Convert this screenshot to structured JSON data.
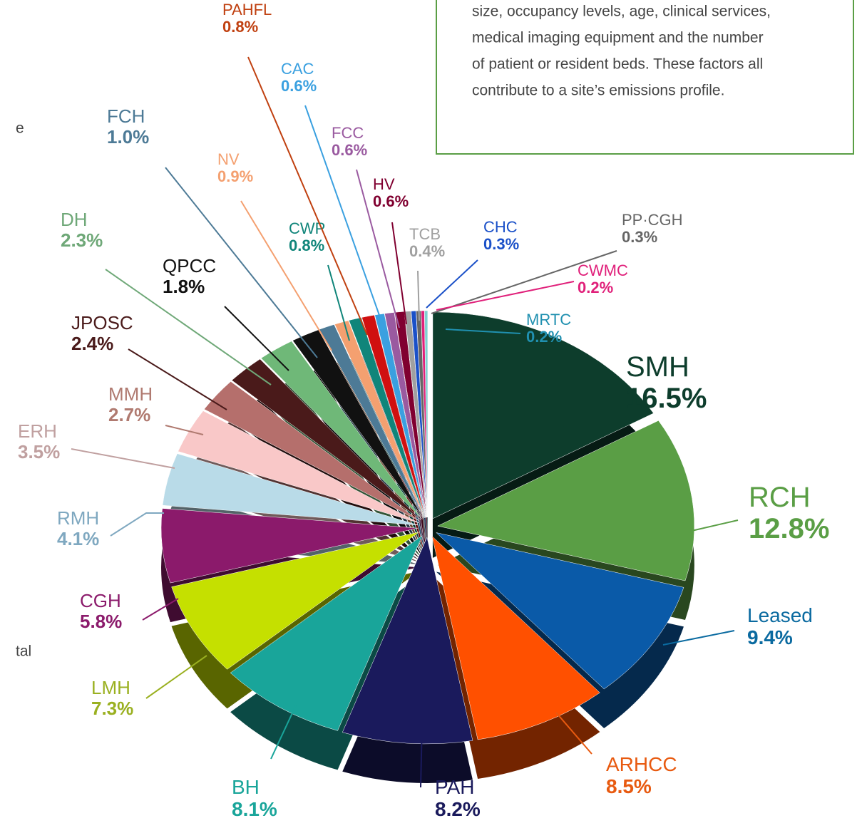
{
  "chart_data": {
    "type": "pie",
    "categories": [
      "SMH",
      "RCH",
      "Leased",
      "ARHCC",
      "PAH",
      "BH",
      "LMH",
      "CGH",
      "RMH",
      "ERH",
      "MMH",
      "JPOSC",
      "DH",
      "QPCC",
      "FCH",
      "NV",
      "CWP",
      "PAHFL",
      "CAC",
      "FCC",
      "HV",
      "TCB",
      "CHC",
      "PP·CGH",
      "CWMC",
      "MRTC"
    ],
    "values": [
      16.5,
      12.8,
      9.4,
      8.5,
      8.2,
      8.1,
      7.3,
      5.8,
      4.1,
      3.5,
      2.7,
      2.4,
      2.3,
      1.8,
      1.0,
      0.9,
      0.8,
      0.8,
      0.6,
      0.6,
      0.6,
      0.4,
      0.3,
      0.3,
      0.2,
      0.2
    ],
    "value_labels": [
      "16.5%",
      "12.8%",
      "9.4%",
      "8.5%",
      "8.2%",
      "8.1%",
      "7.3%",
      "5.8%",
      "4.1%",
      "3.5%",
      "2.7%",
      "2.4%",
      "2.3%",
      "1.8%",
      "1.0%",
      "0.9%",
      "0.8%",
      "0.8%",
      "0.6%",
      "0.6%",
      "0.6%",
      "0.4%",
      "0.3%",
      "0.3%",
      "0.2%",
      "0.2%"
    ],
    "colors": [
      "#0d3d2c",
      "#5a9e45",
      "#0a5aa8",
      "#ff5000",
      "#1a1a5c",
      "#19a59a",
      "#c5e000",
      "#8b1a6b",
      "#b9dbe8",
      "#f9c8c8",
      "#b56f6c",
      "#4a1a1a",
      "#6fb878",
      "#111111",
      "#4d7a96",
      "#f4a070",
      "#10857a",
      "#d01010",
      "#3aa0e0",
      "#9a5aa0",
      "#800030",
      "#a0a0a0",
      "#1a50c8",
      "#666666",
      "#e0207a",
      "#80d0d0"
    ],
    "label_colors": [
      "#0d3d2c",
      "#5a9e45",
      "#0a6aa0",
      "#e85a10",
      "#1a1a5c",
      "#19a59a",
      "#9ab020",
      "#8b1a6b",
      "#7fa8c0",
      "#c0a0a0",
      "#b07a70",
      "#4a1a1a",
      "#6fa878",
      "#111111",
      "#4d7a96",
      "#f4a070",
      "#10857a",
      "#c04010",
      "#3aa0e0",
      "#9a5aa0",
      "#800030",
      "#a0a0a0",
      "#1a50c8",
      "#666666",
      "#e0207a",
      "#2090b0"
    ]
  },
  "text_box": {
    "lines": [
      "size, occupancy levels, age, clinical services,",
      "medical imaging equipment and the number",
      "of patient or resident beds. These factors all",
      "contribute to a site’s emissions profile."
    ]
  },
  "fragments": [
    "e",
    "tal"
  ]
}
